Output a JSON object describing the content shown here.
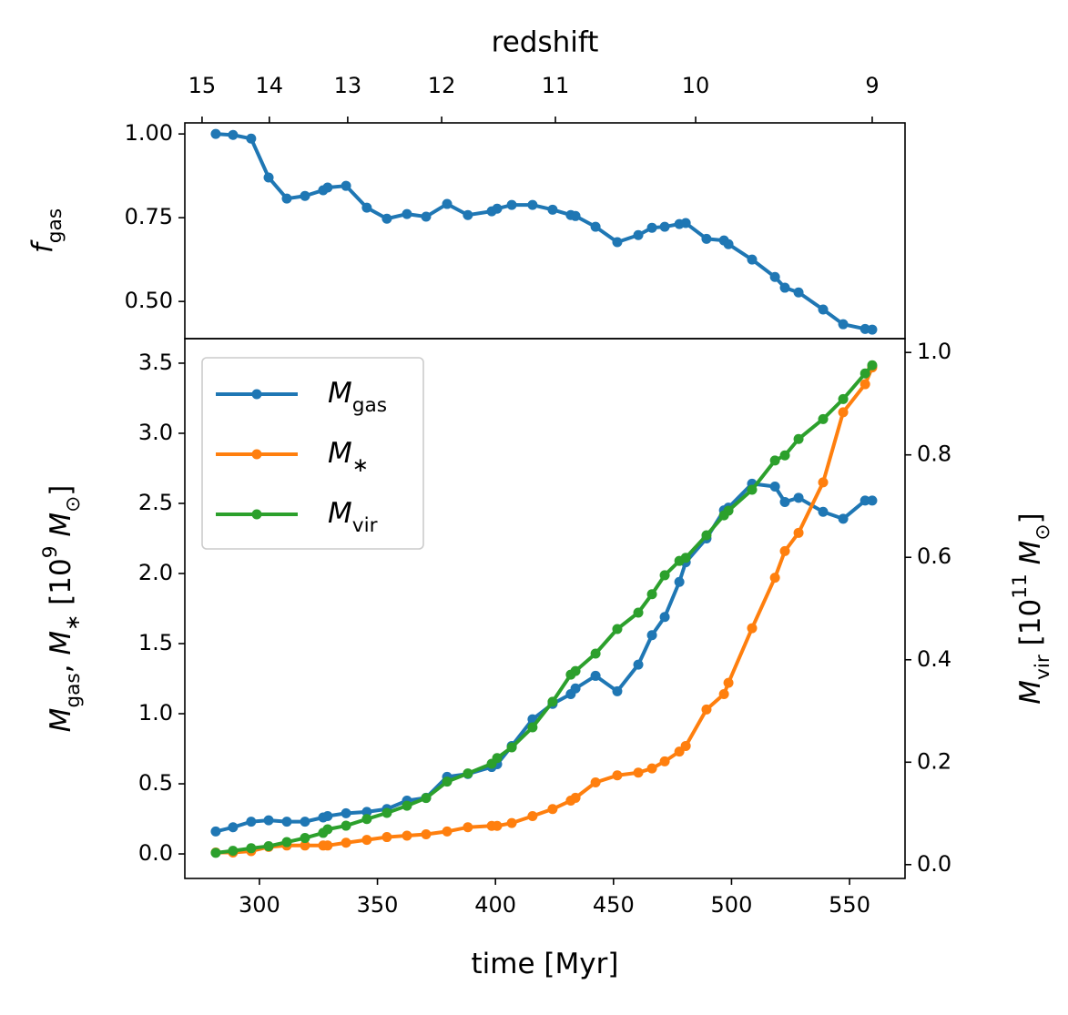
{
  "chart_data": [
    {
      "type": "line",
      "x2label": "redshift",
      "x2ticks": [
        {
          "value": 275.7,
          "label": "15"
        },
        {
          "value": 304.2,
          "label": "14"
        },
        {
          "value": 337.4,
          "label": "13"
        },
        {
          "value": 377.2,
          "label": "12"
        },
        {
          "value": 425.4,
          "label": "11"
        },
        {
          "value": 484.8,
          "label": "10"
        },
        {
          "value": 559.6,
          "label": "9"
        }
      ],
      "ylabel": [
        {
          "t": "f",
          "s": "i"
        },
        {
          "t": "gas",
          "s": "sub"
        }
      ],
      "xlim": [
        268.4,
        573.5
      ],
      "ylim": [
        0.389,
        1.033
      ],
      "yticks": [
        {
          "value": 0.5,
          "label": "0.50"
        },
        {
          "value": 0.75,
          "label": "0.75"
        },
        {
          "value": 1.0,
          "label": "1.00"
        }
      ],
      "x": [
        281.5,
        288.8,
        296.5,
        303.9,
        311.6,
        319.3,
        327.0,
        328.9,
        336.7,
        345.5,
        354.0,
        362.5,
        370.6,
        379.5,
        388.3,
        398.4,
        400.7,
        406.9,
        415.7,
        424.2,
        431.9,
        433.9,
        442.4,
        451.6,
        460.5,
        466.3,
        471.7,
        477.9,
        480.6,
        489.4,
        496.8,
        498.7,
        508.7,
        518.4,
        522.6,
        528.4,
        538.8,
        547.3,
        556.6,
        559.6
      ],
      "series": [
        {
          "color": "#1f77b4",
          "values": [
            1.0,
            0.997,
            0.986,
            0.87,
            0.807,
            0.815,
            0.832,
            0.84,
            0.845,
            0.78,
            0.747,
            0.761,
            0.753,
            0.791,
            0.758,
            0.769,
            0.777,
            0.788,
            0.788,
            0.774,
            0.758,
            0.755,
            0.723,
            0.677,
            0.698,
            0.72,
            0.723,
            0.731,
            0.734,
            0.687,
            0.682,
            0.671,
            0.625,
            0.573,
            0.541,
            0.527,
            0.476,
            0.432,
            0.418,
            0.416
          ]
        }
      ]
    },
    {
      "type": "line",
      "xlabel": [
        {
          "t": "time [Myr]"
        }
      ],
      "ylabel": [
        {
          "t": "M",
          "s": "i"
        },
        {
          "t": "gas",
          "s": "sub"
        },
        {
          "t": ", "
        },
        {
          "t": "M",
          "s": "i"
        },
        {
          "t": "∗",
          "s": "sub"
        },
        {
          "t": " [10"
        },
        {
          "t": "9",
          "s": "sup"
        },
        {
          "t": " "
        },
        {
          "t": "M",
          "s": "i"
        },
        {
          "t": "⊙",
          "s": "sub"
        },
        {
          "t": "]"
        }
      ],
      "y2label": [
        {
          "t": "M",
          "s": "i"
        },
        {
          "t": "vir",
          "s": "sub"
        },
        {
          "t": " [10"
        },
        {
          "t": "11",
          "s": "sup"
        },
        {
          "t": " "
        },
        {
          "t": "M",
          "s": "i"
        },
        {
          "t": "⊙",
          "s": "sub"
        },
        {
          "t": "]"
        }
      ],
      "xlim": [
        268.4,
        573.5
      ],
      "xticks": [
        300,
        350,
        400,
        450,
        500,
        550
      ],
      "ylim": [
        -0.175,
        3.675
      ],
      "yticks": [
        {
          "value": 0,
          "label": "0.0"
        },
        {
          "value": 0.5,
          "label": "0.5"
        },
        {
          "value": 1,
          "label": "1.0"
        },
        {
          "value": 1.5,
          "label": "1.5"
        },
        {
          "value": 2,
          "label": "2.0"
        },
        {
          "value": 2.5,
          "label": "2.5"
        },
        {
          "value": 3,
          "label": "3.0"
        },
        {
          "value": 3.5,
          "label": "3.5"
        }
      ],
      "y2lim": [
        -0.027,
        1.027
      ],
      "y2ticks": [
        {
          "value": 0,
          "label": "0.0"
        },
        {
          "value": 0.2,
          "label": "0.2"
        },
        {
          "value": 0.4,
          "label": "0.4"
        },
        {
          "value": 0.6,
          "label": "0.6"
        },
        {
          "value": 0.8,
          "label": "0.8"
        },
        {
          "value": 1,
          "label": "1.0"
        }
      ],
      "legend": "upper left",
      "x": [
        281.5,
        288.8,
        296.5,
        303.9,
        311.6,
        319.3,
        327.0,
        328.9,
        336.7,
        345.5,
        354.0,
        362.5,
        370.6,
        379.5,
        388.3,
        398.4,
        400.7,
        406.9,
        415.7,
        424.2,
        431.9,
        433.9,
        442.4,
        451.6,
        460.5,
        466.3,
        471.7,
        477.9,
        480.6,
        489.4,
        496.8,
        498.7,
        508.7,
        518.4,
        522.6,
        528.4,
        538.8,
        547.3,
        556.6,
        559.6
      ],
      "series": [
        {
          "name": [
            {
              "t": "M",
              "s": "i"
            },
            {
              "t": "gas",
              "s": "sub"
            }
          ],
          "color": "#1f77b4",
          "values": [
            0.16,
            0.19,
            0.23,
            0.24,
            0.23,
            0.23,
            0.26,
            0.27,
            0.29,
            0.3,
            0.32,
            0.38,
            0.4,
            0.55,
            0.57,
            0.62,
            0.64,
            0.77,
            0.96,
            1.07,
            1.14,
            1.18,
            1.27,
            1.16,
            1.35,
            1.56,
            1.69,
            1.94,
            2.08,
            2.25,
            2.45,
            2.47,
            2.64,
            2.62,
            2.51,
            2.54,
            2.44,
            2.39,
            2.52,
            2.52
          ]
        },
        {
          "name": [
            {
              "t": "M",
              "s": "i"
            },
            {
              "t": "∗",
              "s": "sub"
            }
          ],
          "color": "#ff7f0e",
          "values": [
            0.01,
            0.01,
            0.02,
            0.05,
            0.06,
            0.06,
            0.06,
            0.06,
            0.08,
            0.1,
            0.12,
            0.13,
            0.14,
            0.16,
            0.19,
            0.2,
            0.2,
            0.22,
            0.27,
            0.32,
            0.38,
            0.4,
            0.51,
            0.56,
            0.58,
            0.61,
            0.66,
            0.73,
            0.77,
            1.03,
            1.14,
            1.22,
            1.61,
            1.97,
            2.16,
            2.29,
            2.65,
            3.15,
            3.35,
            3.47
          ]
        },
        {
          "name": [
            {
              "t": "M",
              "s": "i"
            },
            {
              "t": "vir",
              "s": "sub"
            }
          ],
          "color": "#2ca02c",
          "axis": "y2",
          "values": [
            0.023,
            0.027,
            0.032,
            0.036,
            0.044,
            0.052,
            0.062,
            0.069,
            0.076,
            0.089,
            0.101,
            0.115,
            0.13,
            0.162,
            0.178,
            0.197,
            0.208,
            0.229,
            0.268,
            0.318,
            0.371,
            0.378,
            0.412,
            0.46,
            0.492,
            0.528,
            0.565,
            0.593,
            0.599,
            0.643,
            0.682,
            0.691,
            0.732,
            0.789,
            0.799,
            0.831,
            0.87,
            0.909,
            0.959,
            0.975
          ]
        }
      ]
    }
  ]
}
